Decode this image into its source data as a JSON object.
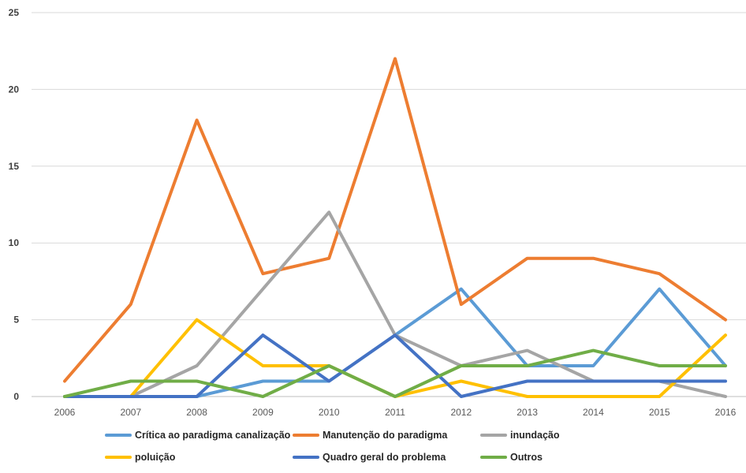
{
  "chart_data": {
    "type": "line",
    "x": [
      "2006",
      "2007",
      "2008",
      "2009",
      "2010",
      "2011",
      "2012",
      "2013",
      "2014",
      "2015",
      "2016"
    ],
    "ylim": [
      0,
      25
    ],
    "yticks": [
      "0",
      "5",
      "10",
      "15",
      "20",
      "25"
    ],
    "grid": true,
    "legend_position": "bottom",
    "series": [
      {
        "name": "Crítica ao paradigma canalização",
        "color": "#5b9bd5",
        "values": [
          0,
          0,
          0,
          1,
          1,
          4,
          7,
          2,
          2,
          7,
          2
        ]
      },
      {
        "name": "Manutenção do paradigma",
        "color": "#ed7d31",
        "values": [
          1,
          6,
          18,
          8,
          9,
          22,
          6,
          9,
          9,
          8,
          5
        ]
      },
      {
        "name": "inundação",
        "color": "#a5a5a5",
        "values": [
          0,
          0,
          2,
          7,
          12,
          4,
          2,
          3,
          1,
          1,
          0
        ]
      },
      {
        "name": "poluição",
        "color": "#ffc000",
        "values": [
          0,
          0,
          5,
          2,
          2,
          0,
          1,
          0,
          0,
          0,
          4
        ]
      },
      {
        "name": "Quadro geral do problema",
        "color": "#4472c4",
        "values": [
          0,
          0,
          0,
          4,
          1,
          4,
          0,
          1,
          1,
          1,
          1
        ]
      },
      {
        "name": "Outros",
        "color": "#70ad47",
        "values": [
          0,
          1,
          1,
          0,
          2,
          0,
          2,
          2,
          3,
          2,
          2
        ]
      }
    ]
  }
}
